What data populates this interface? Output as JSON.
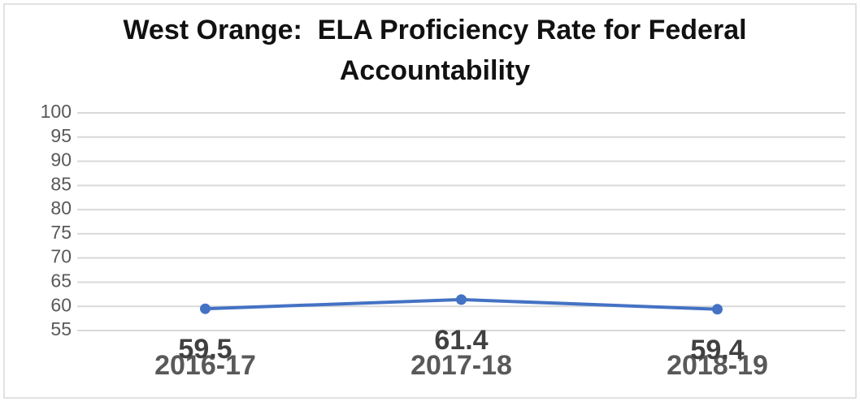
{
  "chart_data": {
    "type": "line",
    "title": "West Orange:  ELA Proficiency Rate for Federal Accountability",
    "categories": [
      "2016-17",
      "2017-18",
      "2018-19"
    ],
    "values": [
      59.5,
      61.4,
      59.4
    ],
    "color": "#4472c4",
    "ylim": [
      55,
      100
    ],
    "yticks": [
      55,
      60,
      65,
      70,
      75,
      80,
      85,
      90,
      95,
      100
    ],
    "grid": true
  }
}
